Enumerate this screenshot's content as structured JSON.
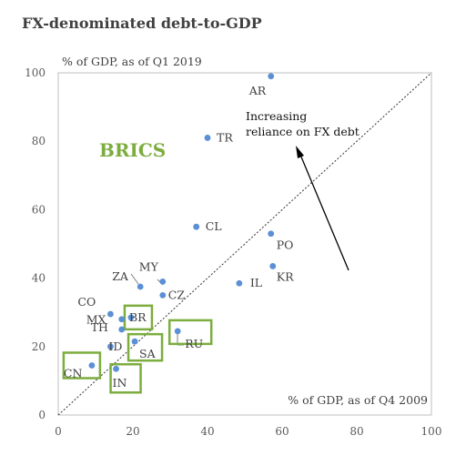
{
  "colors": {
    "point": "#5b8fd6",
    "brics": "#7cad3e",
    "axis": "#595959",
    "text": "#404040",
    "arrow": "#000000"
  },
  "chart_data": {
    "type": "scatter",
    "title": "FX-denominated debt-to-GDP",
    "ylabel": "% of GDP, as of Q1 2019",
    "xlabel": "% of GDP, as of Q4 2009",
    "xlim": [
      0,
      100
    ],
    "ylim": [
      0,
      100
    ],
    "xticks": [
      "0",
      "20",
      "40",
      "60",
      "80",
      "100"
    ],
    "yticks": [
      "0",
      "20",
      "40",
      "60",
      "80",
      "100"
    ],
    "grid": false,
    "reference_line": "y = x",
    "brics_label": "BRICS",
    "annotation": [
      "Increasing",
      "reliance on FX debt"
    ],
    "points": [
      {
        "label": "AR",
        "x": 57,
        "y": 99,
        "brics": false
      },
      {
        "label": "TR",
        "x": 40,
        "y": 81,
        "brics": false
      },
      {
        "label": "CL",
        "x": 37,
        "y": 55,
        "brics": false
      },
      {
        "label": "PO",
        "x": 57,
        "y": 53,
        "brics": false
      },
      {
        "label": "KR",
        "x": 57.5,
        "y": 43.5,
        "brics": false
      },
      {
        "label": "IL",
        "x": 48.5,
        "y": 38.5,
        "brics": false
      },
      {
        "label": "MY",
        "x": 28,
        "y": 39,
        "brics": false
      },
      {
        "label": "CZ",
        "x": 28,
        "y": 35,
        "brics": false
      },
      {
        "label": "ZA",
        "x": 22,
        "y": 37.5,
        "brics": false
      },
      {
        "label": "BR",
        "x": 19.5,
        "y": 28.5,
        "brics": true
      },
      {
        "label": "CO",
        "x": 14,
        "y": 29.5,
        "brics": false
      },
      {
        "label": "MX",
        "x": 17,
        "y": 28,
        "brics": false
      },
      {
        "label": "RU",
        "x": 32,
        "y": 24.5,
        "brics": true
      },
      {
        "label": "SA",
        "x": 20.5,
        "y": 21.5,
        "brics": true
      },
      {
        "label": "TH",
        "x": 17,
        "y": 25,
        "brics": false
      },
      {
        "label": "ID",
        "x": 14,
        "y": 20,
        "brics": false
      },
      {
        "label": "CN",
        "x": 9,
        "y": 14.5,
        "brics": true
      },
      {
        "label": "IN",
        "x": 15.5,
        "y": 13.5,
        "brics": true
      }
    ]
  }
}
